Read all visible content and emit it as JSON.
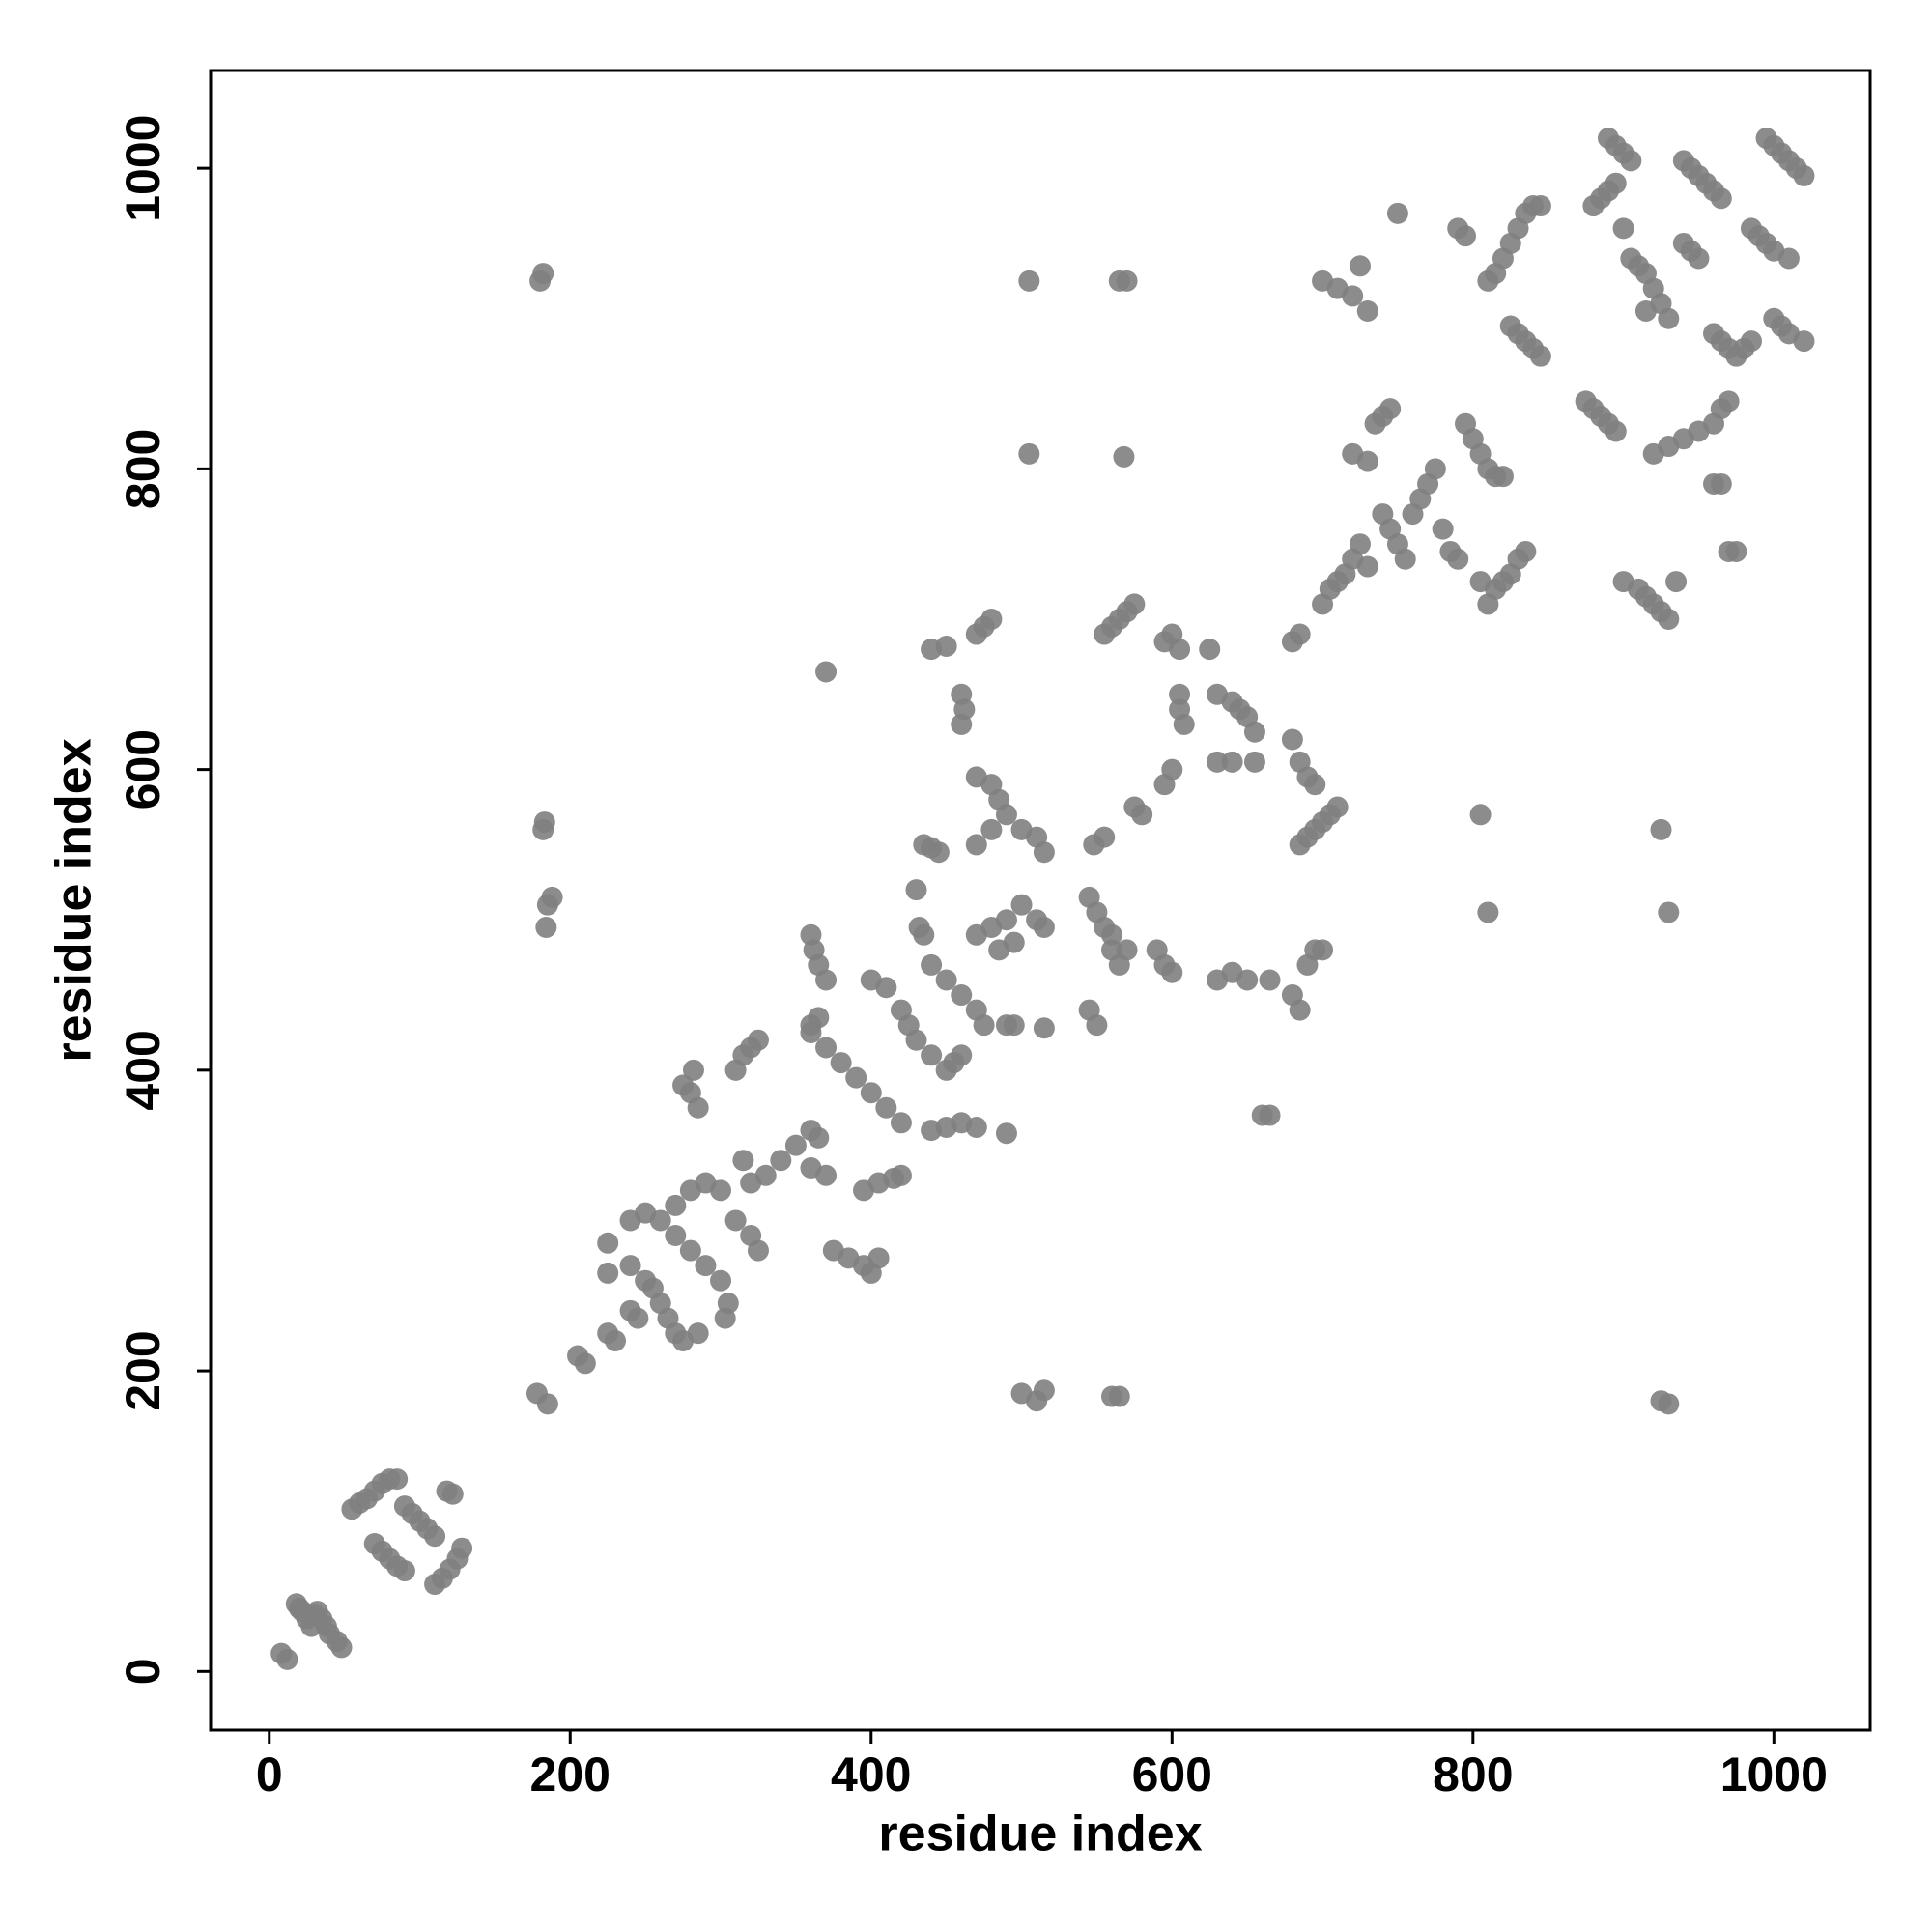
{
  "chart_data": {
    "type": "scatter",
    "x_label": "residue index",
    "y_label": "residue index",
    "x": [
      8,
      12,
      18,
      22,
      25,
      28,
      32,
      35,
      38,
      40,
      45,
      48,
      20,
      30,
      55,
      60,
      65,
      70,
      75,
      80,
      85,
      70,
      75,
      80,
      85,
      90,
      90,
      95,
      100,
      105,
      110,
      110,
      115,
      120,
      125,
      128,
      118,
      122,
      180,
      182,
      182,
      183,
      185,
      188,
      184,
      178,
      185,
      205,
      210,
      225,
      230,
      225,
      225,
      240,
      250,
      255,
      260,
      265,
      270,
      275,
      285,
      240,
      250,
      260,
      270,
      280,
      290,
      300,
      310,
      320,
      325,
      240,
      245,
      270,
      280,
      290,
      300,
      305,
      303,
      275,
      280,
      285,
      282,
      310,
      315,
      320,
      325,
      330,
      340,
      350,
      315,
      320,
      360,
      362,
      365,
      370,
      360,
      365,
      370,
      360,
      370,
      380,
      390,
      400,
      410,
      420,
      360,
      365,
      360,
      370,
      375,
      385,
      395,
      400,
      405,
      395,
      405,
      415,
      420,
      400,
      410,
      420,
      425,
      430,
      440,
      450,
      455,
      460,
      430,
      432,
      435,
      435,
      440,
      445,
      440,
      450,
      460,
      470,
      475,
      440,
      450,
      460,
      470,
      440,
      450,
      460,
      462,
      460,
      470,
      475,
      480,
      470,
      480,
      485,
      480,
      470,
      490,
      500,
      510,
      515,
      470,
      480,
      490,
      495,
      500,
      510,
      515,
      485,
      490,
      495,
      490,
      515,
      505,
      505,
      500,
      510,
      515,
      545,
      550,
      555,
      560,
      565,
      570,
      560,
      545,
      550,
      548,
      555,
      555,
      560,
      565,
      570,
      575,
      565,
      570,
      568,
      560,
      565,
      575,
      580,
      590,
      595,
      600,
      595,
      600,
      595,
      600,
      605,
      605,
      605,
      608,
      625,
      630,
      640,
      645,
      650,
      655,
      630,
      640,
      655,
      630,
      640,
      650,
      665,
      660,
      665,
      680,
      685,
      680,
      685,
      690,
      695,
      680,
      685,
      690,
      695,
      700,
      685,
      690,
      695,
      700,
      705,
      710,
      700,
      705,
      710,
      715,
      720,
      725,
      730,
      730,
      720,
      735,
      740,
      745,
      750,
      700,
      710,
      720,
      730,
      725,
      740,
      745,
      750,
      755,
      760,
      765,
      770,
      775,
      780,
      785,
      790,
      795,
      800,
      805,
      810,
      815,
      820,
      790,
      795,
      805,
      810,
      805,
      810,
      815,
      820,
      825,
      830,
      835,
      810,
      815,
      820,
      825,
      830,
      835,
      840,
      845,
      825,
      830,
      835,
      840,
      845,
      875,
      880,
      885,
      890,
      895,
      880,
      885,
      890,
      895,
      890,
      895,
      900,
      905,
      900,
      905,
      910,
      915,
      920,
      925,
      930,
      915,
      900,
      910,
      915,
      920,
      925,
      930,
      935,
      925,
      930,
      925,
      930,
      920,
      930,
      940,
      950,
      960,
      965,
      970,
      940,
      945,
      950,
      955,
      960,
      965,
      940,
      945,
      950,
      960,
      965,
      970,
      975,
      980,
      985,
      960,
      965,
      970,
      975,
      985,
      990,
      995,
      1000,
      1010,
      995,
      1000,
      1005,
      1010,
      1015,
      1020,
      1000,
      1005,
      1010,
      1020
    ],
    "values": [
      12,
      8,
      45,
      40,
      35,
      30,
      40,
      35,
      30,
      25,
      20,
      16,
      42,
      38,
      108,
      112,
      115,
      120,
      125,
      128,
      128,
      85,
      80,
      75,
      70,
      67,
      110,
      105,
      100,
      95,
      90,
      58,
      62,
      68,
      75,
      82,
      120,
      118,
      925,
      930,
      560,
      565,
      510,
      515,
      495,
      185,
      178,
      210,
      205,
      225,
      220,
      285,
      265,
      270,
      260,
      255,
      245,
      235,
      225,
      220,
      225,
      300,
      305,
      300,
      310,
      320,
      325,
      320,
      300,
      290,
      280,
      240,
      235,
      290,
      280,
      270,
      260,
      245,
      235,
      390,
      385,
      375,
      400,
      400,
      410,
      415,
      420,
      330,
      340,
      350,
      340,
      325,
      490,
      480,
      470,
      460,
      430,
      435,
      665,
      425,
      415,
      405,
      395,
      385,
      375,
      365,
      360,
      355,
      335,
      330,
      280,
      275,
      270,
      265,
      275,
      320,
      325,
      328,
      330,
      460,
      455,
      440,
      430,
      420,
      410,
      400,
      405,
      410,
      520,
      495,
      490,
      550,
      548,
      545,
      470,
      460,
      450,
      440,
      430,
      360,
      362,
      365,
      362,
      680,
      682,
      650,
      640,
      630,
      690,
      695,
      700,
      595,
      590,
      580,
      560,
      550,
      570,
      560,
      555,
      545,
      490,
      495,
      500,
      485,
      510,
      500,
      495,
      480,
      430,
      430,
      358,
      428,
      810,
      925,
      185,
      180,
      187,
      515,
      505,
      495,
      480,
      470,
      480,
      490,
      440,
      430,
      550,
      555,
      690,
      695,
      700,
      705,
      710,
      925,
      925,
      808,
      183,
      183,
      575,
      570,
      480,
      470,
      465,
      590,
      600,
      685,
      690,
      680,
      640,
      650,
      630,
      680,
      650,
      645,
      640,
      635,
      625,
      605,
      605,
      605,
      460,
      465,
      460,
      460,
      370,
      370,
      685,
      690,
      620,
      605,
      595,
      590,
      450,
      440,
      470,
      480,
      480,
      550,
      555,
      560,
      565,
      570,
      575,
      710,
      720,
      725,
      730,
      740,
      750,
      735,
      805,
      810,
      830,
      835,
      840,
      970,
      925,
      920,
      915,
      905,
      935,
      770,
      760,
      750,
      740,
      770,
      780,
      790,
      800,
      760,
      745,
      740,
      830,
      820,
      810,
      800,
      795,
      795,
      960,
      955,
      570,
      505,
      725,
      710,
      720,
      725,
      730,
      740,
      745,
      925,
      930,
      940,
      950,
      960,
      970,
      975,
      975,
      895,
      890,
      885,
      880,
      875,
      845,
      840,
      835,
      830,
      825,
      975,
      980,
      985,
      990,
      1020,
      1015,
      1010,
      1005,
      960,
      940,
      935,
      930,
      920,
      910,
      900,
      905,
      725,
      720,
      715,
      710,
      705,
      700,
      725,
      560,
      505,
      180,
      178,
      810,
      815,
      820,
      825,
      830,
      840,
      845,
      1005,
      1000,
      995,
      990,
      985,
      980,
      950,
      945,
      940,
      890,
      885,
      880,
      875,
      880,
      885,
      790,
      790,
      745,
      745,
      960,
      955,
      950,
      945,
      940,
      1020,
      1015,
      1010,
      1005,
      1000,
      995,
      900,
      895,
      890,
      885
    ],
    "color": "#7f7f7f",
    "xlim": [
      -39,
      1064
    ],
    "ylim": [
      -39,
      1065
    ],
    "xticks": [
      0,
      200,
      400,
      600,
      800,
      1000
    ],
    "yticks": [
      0,
      200,
      400,
      600,
      800,
      1000
    ]
  }
}
